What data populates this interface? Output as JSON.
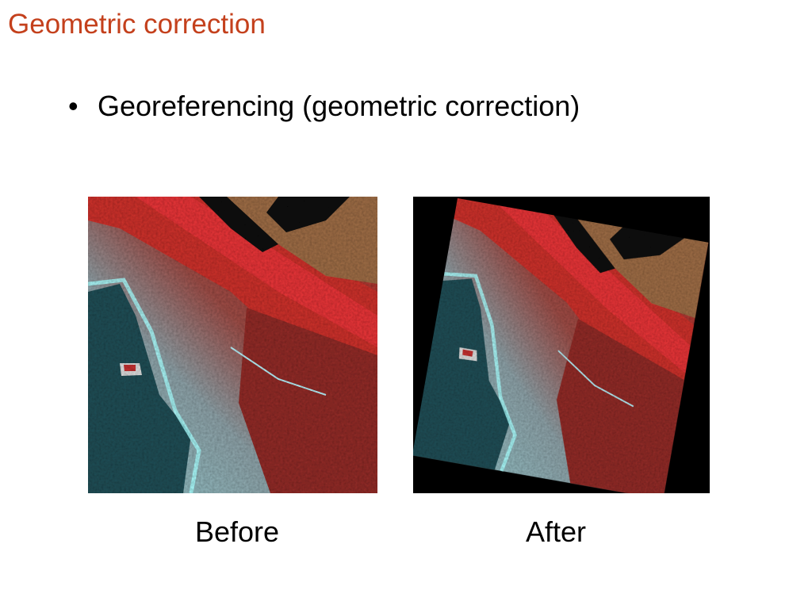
{
  "header": {
    "title": "Geometric correction"
  },
  "bullets": [
    "Georeferencing (geometric correction)"
  ],
  "figures": [
    {
      "caption": "Before"
    },
    {
      "caption": "After"
    }
  ]
}
